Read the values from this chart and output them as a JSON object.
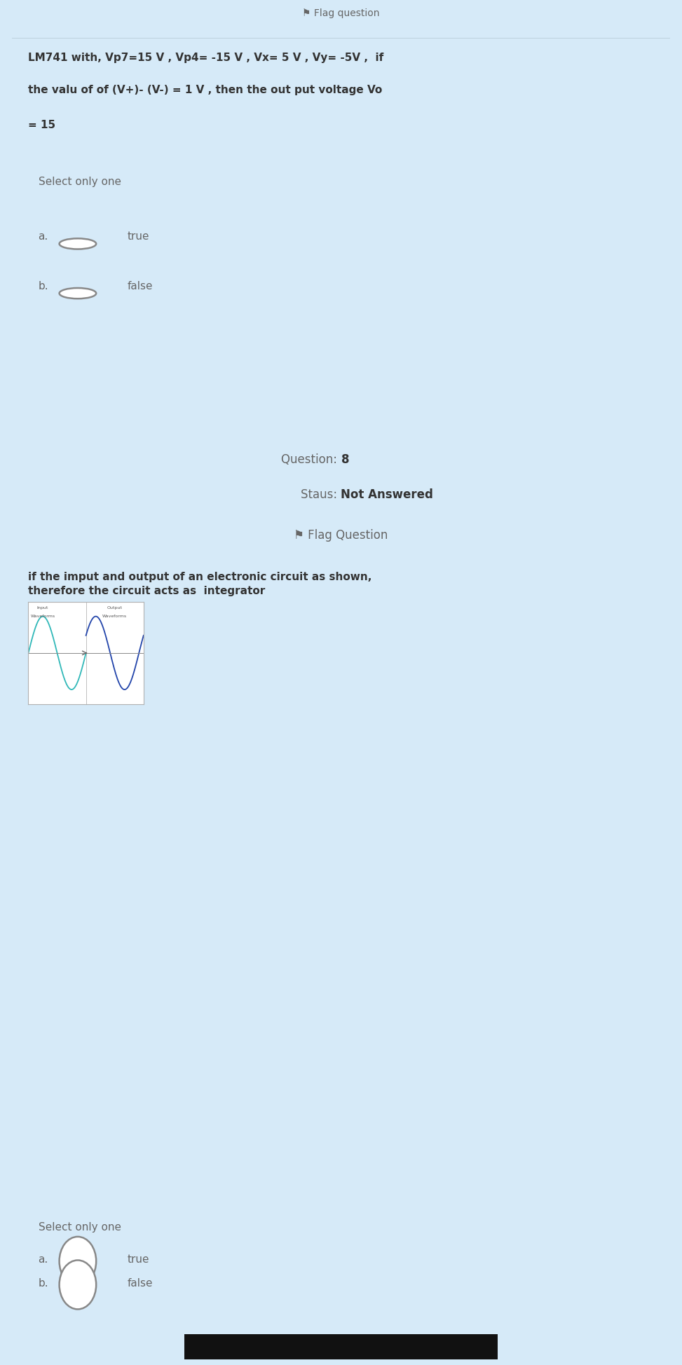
{
  "bg_main": "#d6eaf8",
  "bg_page": "#d6eaf8",
  "bg_separator": "#b8cdd8",
  "bg_white": "#ffffff",
  "text_dark": "#666666",
  "text_black": "#333333",
  "q7_line1": "LM741 with, Vp7=15 V , Vp4= -15 V , Vx= 5 V , Vy= -5V ,  if",
  "q7_line2": "the valu of of (V+)- (V-) = 1 V , then the out put voltage Vo",
  "q7_line3": "= 15",
  "q7_select_text": "Select only one",
  "q7_option_a": "true",
  "q7_option_b": "false",
  "nav_question_label": "Question: ",
  "nav_question_num": "8",
  "nav_status_label": "Staus: ",
  "nav_status_val": "Not Answered",
  "nav_flag": "⚑ Flag Question",
  "q8_line1": "if the imput and output of an electronic circuit as shown,",
  "q8_line2": "therefore the circuit acts as  integrator",
  "q8_select_text": "Select only one",
  "q8_option_a": "true",
  "q8_option_b": "false",
  "wf_input_line1": "Input",
  "wf_input_line2": "Waveforms",
  "wf_output_line1": "Output",
  "wf_output_line2": "Waveforms",
  "wf_input_color": "#30b8b8",
  "wf_output_color": "#2244aa",
  "top_partial_text": "⚑ Flag question",
  "bottom_bar_color": "#111111"
}
